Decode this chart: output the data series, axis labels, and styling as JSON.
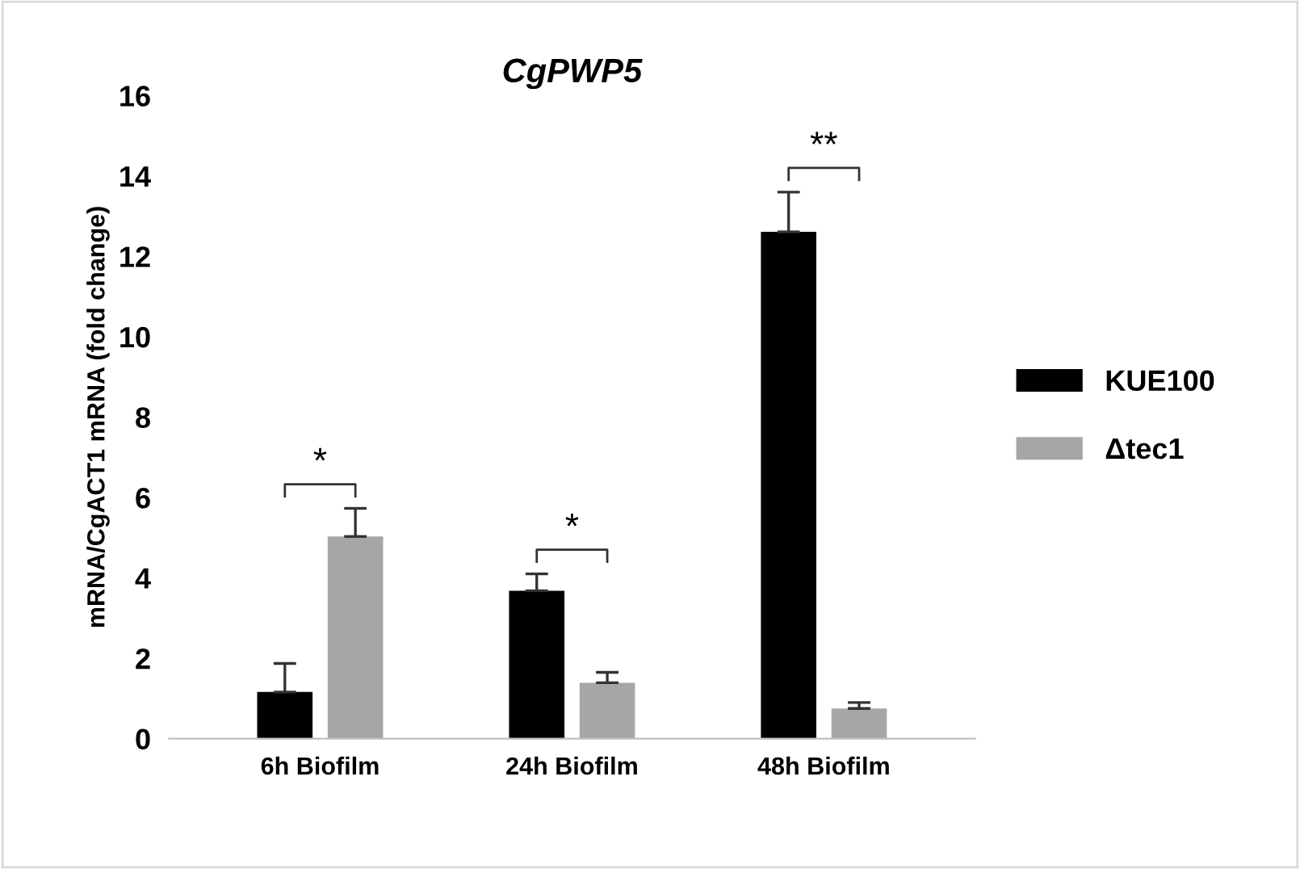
{
  "chart_data": {
    "type": "bar",
    "title": "CgPWP5",
    "ylabel": "mRNA/CgACT1 mRNA (fold change)",
    "categories": [
      "6h Biofilm",
      "24h Biofilm",
      "48h Biofilm"
    ],
    "series": [
      {
        "name": "KUE100",
        "color": "#000000",
        "values": [
          1.16,
          3.68,
          12.61
        ],
        "errors": [
          [
            1.16,
            1.87
          ],
          [
            3.68,
            4.1
          ],
          [
            12.61,
            13.6
          ]
        ]
      },
      {
        "name": "Δtec1",
        "color": "#a6a6a6",
        "values": [
          5.03,
          1.39,
          0.75
        ],
        "errors": [
          [
            5.03,
            5.73
          ],
          [
            1.39,
            1.65
          ],
          [
            0.75,
            0.9
          ]
        ]
      }
    ],
    "ylim": [
      0,
      16
    ],
    "yticks": [
      0,
      2,
      4,
      6,
      8,
      10,
      12,
      14,
      16
    ],
    "grid": false,
    "legend": "right",
    "annotations": [
      "*",
      "*",
      "**"
    ]
  }
}
